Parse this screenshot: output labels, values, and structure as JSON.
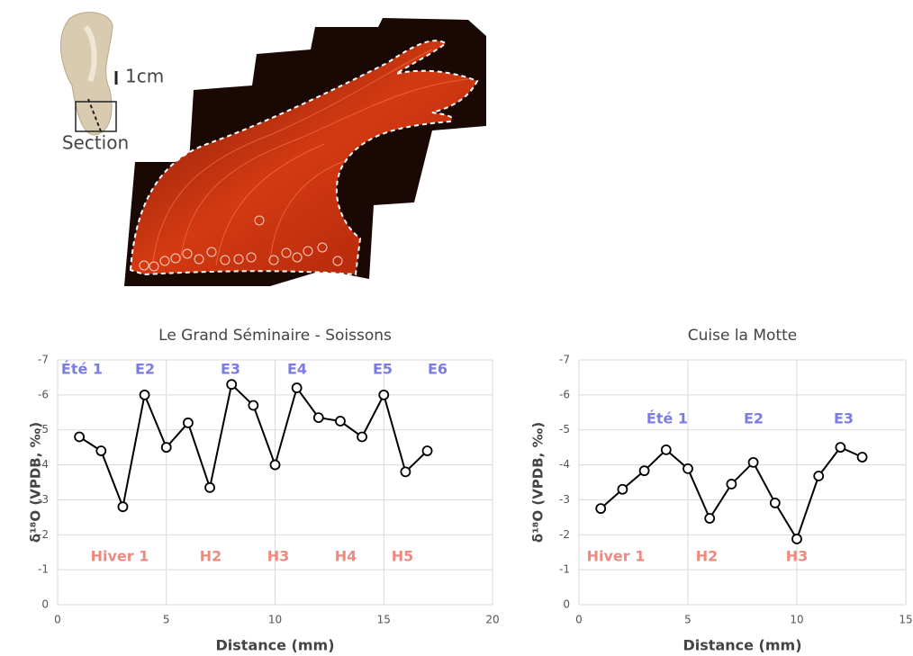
{
  "figure": {
    "scale_label": "1cm",
    "section_label": "Section"
  },
  "chart_data": [
    {
      "type": "line",
      "title": "Le Grand Séminaire - Soissons",
      "x_label": "Distance (mm)",
      "y_label": "δ¹⁸O (VPDB, ‰)",
      "x": [
        1,
        2,
        3,
        4,
        5,
        6,
        7,
        8,
        9,
        10,
        11,
        12,
        13,
        14,
        15,
        16,
        17
      ],
      "series": [
        {
          "color": "#000000",
          "values": [
            -4.8,
            -4.4,
            -2.8,
            -6.0,
            -4.5,
            -5.2,
            -3.35,
            -6.3,
            -5.7,
            -4.0,
            -6.2,
            -5.35,
            -5.25,
            -4.8,
            -6.0,
            -3.8,
            -4.4
          ]
        }
      ],
      "xlim": [
        0,
        20
      ],
      "xticks": [
        0,
        5,
        10,
        15,
        20
      ],
      "ylim": [
        0,
        -7
      ],
      "yticks": [
        0,
        -1,
        -2,
        -3,
        -4,
        -5,
        -6,
        -7
      ],
      "grid": true,
      "annotations": [
        {
          "text": "Été 1",
          "color": "#7b7be6"
        },
        {
          "text": "E2",
          "color": "#7b7be6"
        },
        {
          "text": "E3",
          "color": "#7b7be6"
        },
        {
          "text": "E4",
          "color": "#7b7be6"
        },
        {
          "text": "E5",
          "color": "#7b7be6"
        },
        {
          "text": "E6",
          "color": "#7b7be6"
        },
        {
          "text": "Hiver 1",
          "color": "#ec8a80"
        },
        {
          "text": "H2",
          "color": "#ec8a80"
        },
        {
          "text": "H3",
          "color": "#ec8a80"
        },
        {
          "text": "H4",
          "color": "#ec8a80"
        },
        {
          "text": "H5",
          "color": "#ec8a80"
        }
      ]
    },
    {
      "type": "line",
      "title": "Cuise la Motte",
      "x_label": "Distance (mm)",
      "y_label": "δ¹⁸O (VPDB, ‰)",
      "x": [
        1,
        2,
        3,
        4,
        5,
        6,
        7,
        8,
        9,
        10,
        11,
        12,
        13
      ],
      "series": [
        {
          "color": "#000000",
          "values": [
            -2.75,
            -3.3,
            -3.83,
            -4.43,
            -3.89,
            -2.47,
            -3.45,
            -4.07,
            -2.91,
            -1.88,
            -3.68,
            -4.5,
            -4.22
          ]
        }
      ],
      "xlim": [
        0,
        15
      ],
      "xticks": [
        0,
        5,
        10,
        15
      ],
      "ylim": [
        0,
        -7
      ],
      "yticks": [
        0,
        -1,
        -2,
        -3,
        -4,
        -5,
        -6,
        -7
      ],
      "grid": true,
      "annotations": [
        {
          "text": "Été 1",
          "color": "#7b7be6"
        },
        {
          "text": "E2",
          "color": "#7b7be6"
        },
        {
          "text": "E3",
          "color": "#7b7be6"
        },
        {
          "text": "Hiver 1",
          "color": "#ec8a80"
        },
        {
          "text": "H2",
          "color": "#ec8a80"
        },
        {
          "text": "H3",
          "color": "#ec8a80"
        }
      ]
    }
  ]
}
